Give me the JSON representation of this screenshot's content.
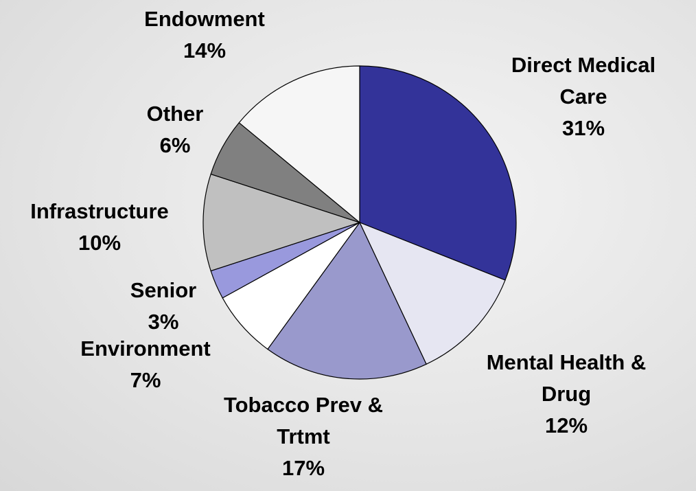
{
  "chart_data": {
    "type": "pie",
    "categories": [
      "Direct Medical Care",
      "Mental Health & Drug",
      "Tobacco Prev & Trtmt",
      "Environment",
      "Senior",
      "Infrastructure",
      "Other",
      "Endowment"
    ],
    "values": [
      31,
      12,
      17,
      7,
      3,
      10,
      6,
      14
    ],
    "value_labels": [
      "31%",
      "12%",
      "17%",
      "7%",
      "3%",
      "10%",
      "6%",
      "14%"
    ],
    "colors": [
      "#333399",
      "#e6e6f2",
      "#9999cc",
      "#ffffff",
      "#9999dd",
      "#c0c0c0",
      "#808080",
      "#f6f6f6"
    ]
  }
}
